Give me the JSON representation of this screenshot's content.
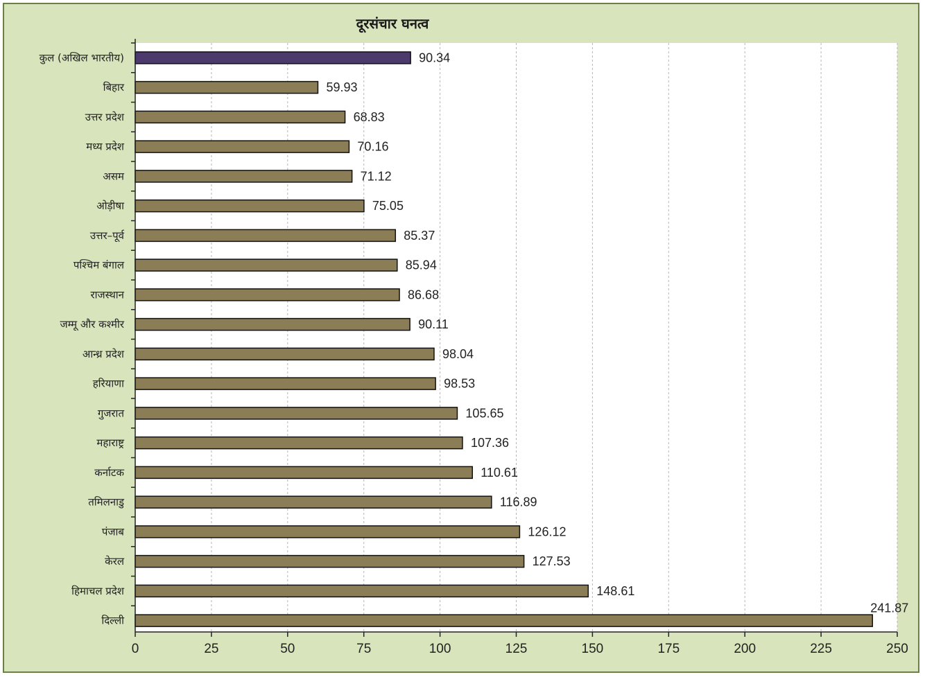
{
  "chart_data": {
    "type": "bar",
    "orientation": "horizontal",
    "title": "दूरसंचार घनत्व",
    "categories": [
      "कुल (अखिल भारतीय)",
      "बिहार",
      "उत्तर प्रदेश",
      "मध्य प्रदेश",
      "असम",
      "ओड़ीषा",
      "उत्तर–पूर्व",
      "पश्चिम बंगाल",
      "राजस्थान",
      "जम्मू और कश्मीर",
      "आन्ध्र प्रदेश",
      "हरियाणा",
      "गुजरात",
      "महाराष्ट्र",
      "कर्नाटक",
      "तमिलनाडु",
      "पंजाब",
      "केरल",
      "हिमाचल प्रदेश",
      "दिल्ली"
    ],
    "values": [
      90.34,
      59.93,
      68.83,
      70.16,
      71.12,
      75.05,
      85.37,
      85.94,
      86.68,
      90.11,
      98.04,
      98.53,
      105.65,
      107.36,
      110.61,
      116.89,
      126.12,
      127.53,
      148.61,
      241.87
    ],
    "value_labels": [
      "90.34",
      "59.93",
      "68.83",
      "70.16",
      "71.12",
      "75.05",
      "85.37",
      "85.94",
      "86.68",
      "90.11",
      "98.04",
      "98.53",
      "105.65",
      "107.36",
      "110.61",
      "116.89",
      "126.12",
      "127.53",
      "148.61",
      "241.87"
    ],
    "xlim": [
      0,
      250
    ],
    "xticks": [
      0,
      25,
      50,
      75,
      100,
      125,
      150,
      175,
      200,
      225,
      250
    ],
    "grid": "vertical dashed",
    "legend": "none",
    "colors": {
      "total_bar": "#4b3a6b",
      "state_bar": "#8b7d55",
      "background": "#d8e4bc",
      "plot_area": "#ffffff"
    }
  }
}
